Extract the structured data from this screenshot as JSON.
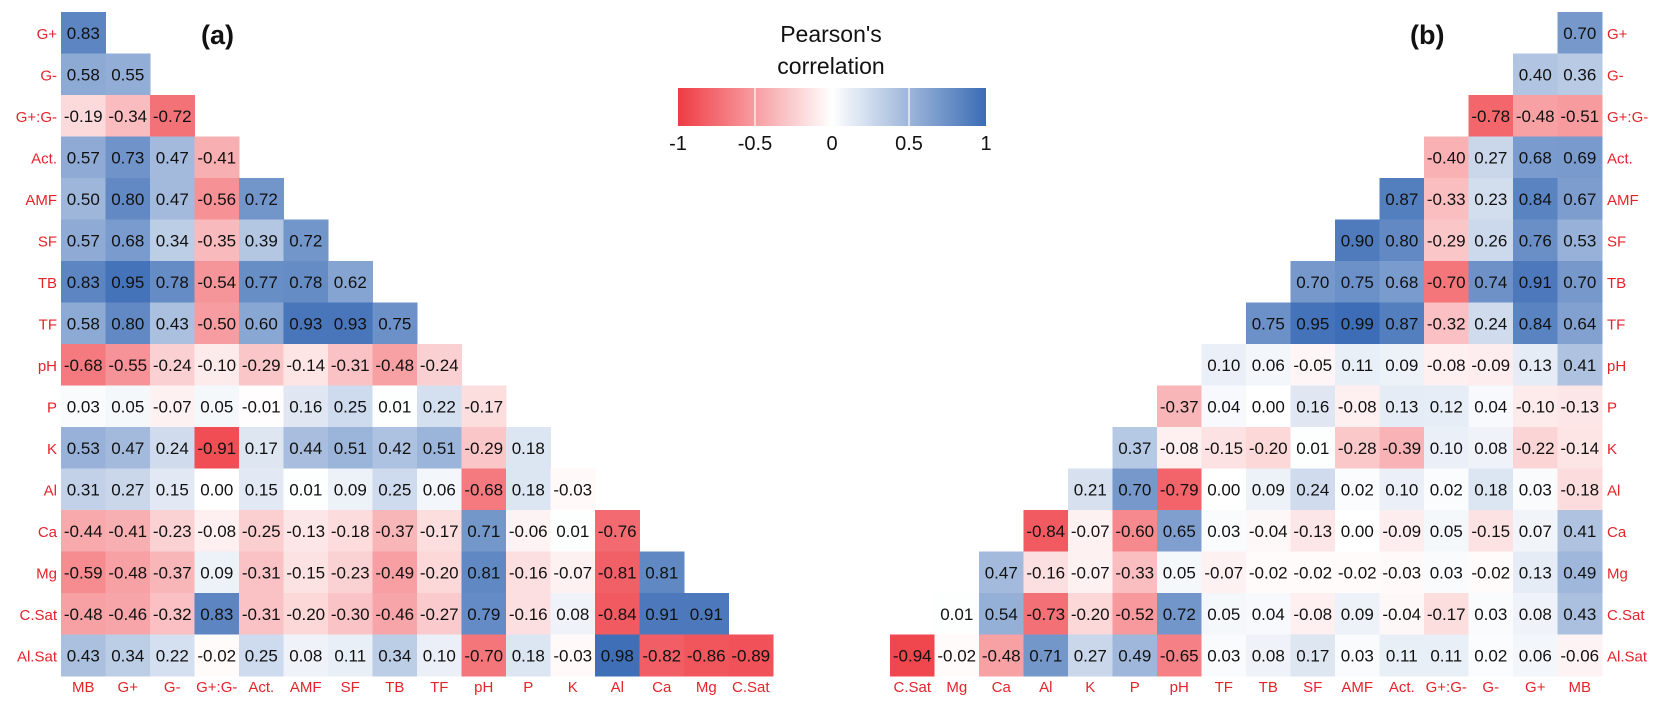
{
  "chart_data": [
    {
      "type": "heatmap",
      "title": "(a)",
      "x": [
        "MB",
        "G+",
        "G-",
        "G+:G-",
        "Act.",
        "AMF",
        "SF",
        "TB",
        "TF",
        "pH",
        "P",
        "K",
        "Al",
        "Ca",
        "Mg",
        "C.Sat"
      ],
      "y": [
        "G+",
        "G-",
        "G+:G-",
        "Act.",
        "AMF",
        "SF",
        "TB",
        "TF",
        "pH",
        "P",
        "K",
        "Al",
        "Ca",
        "Mg",
        "C.Sat",
        "Al.Sat"
      ],
      "values": [
        [
          0.83
        ],
        [
          0.58,
          0.55
        ],
        [
          -0.19,
          -0.34,
          -0.72
        ],
        [
          0.57,
          0.73,
          0.47,
          -0.41
        ],
        [
          0.5,
          0.8,
          0.47,
          -0.56,
          0.72
        ],
        [
          0.57,
          0.68,
          0.34,
          -0.35,
          0.39,
          0.72
        ],
        [
          0.83,
          0.95,
          0.78,
          -0.54,
          0.77,
          0.78,
          0.62
        ],
        [
          0.58,
          0.8,
          0.43,
          -0.5,
          0.6,
          0.93,
          0.93,
          0.75
        ],
        [
          -0.68,
          -0.55,
          -0.24,
          -0.1,
          -0.29,
          -0.14,
          -0.31,
          -0.48,
          -0.24
        ],
        [
          0.03,
          0.05,
          -0.07,
          0.05,
          -0.01,
          0.16,
          0.25,
          0.01,
          0.22,
          -0.17
        ],
        [
          0.53,
          0.47,
          0.24,
          -0.91,
          0.17,
          0.44,
          0.51,
          0.42,
          0.51,
          -0.29,
          0.18
        ],
        [
          0.31,
          0.27,
          0.15,
          0.0,
          0.15,
          0.01,
          0.09,
          0.25,
          0.06,
          -0.68,
          0.18,
          -0.03
        ],
        [
          -0.44,
          -0.41,
          -0.23,
          -0.08,
          -0.25,
          -0.13,
          -0.18,
          -0.37,
          -0.17,
          0.71,
          -0.06,
          0.01,
          -0.76
        ],
        [
          -0.59,
          -0.48,
          -0.37,
          0.09,
          -0.31,
          -0.15,
          -0.23,
          -0.49,
          -0.2,
          0.81,
          -0.16,
          -0.07,
          -0.81,
          0.81
        ],
        [
          -0.48,
          -0.46,
          -0.32,
          0.83,
          -0.31,
          -0.2,
          -0.3,
          -0.46,
          -0.27,
          0.79,
          -0.16,
          0.08,
          -0.84,
          0.91,
          0.91
        ],
        [
          0.43,
          0.34,
          0.22,
          -0.02,
          0.25,
          0.08,
          0.11,
          0.34,
          0.1,
          -0.7,
          0.18,
          -0.03,
          0.98,
          -0.82,
          -0.86,
          -0.89
        ]
      ]
    },
    {
      "type": "heatmap",
      "title": "(b)",
      "x": [
        "C.Sat",
        "Mg",
        "Ca",
        "Al",
        "K",
        "P",
        "pH",
        "TF",
        "TB",
        "SF",
        "AMF",
        "Act.",
        "G+:G-",
        "G-",
        "G+",
        "MB"
      ],
      "y": [
        "G+",
        "G-",
        "G+:G-",
        "Act.",
        "AMF",
        "SF",
        "TB",
        "TF",
        "pH",
        "P",
        "K",
        "Al",
        "Ca",
        "Mg",
        "C.Sat",
        "Al.Sat"
      ],
      "values": [
        [
          0.7
        ],
        [
          0.4,
          0.36
        ],
        [
          -0.78,
          -0.48,
          -0.51
        ],
        [
          -0.4,
          0.27,
          0.68,
          0.69
        ],
        [
          0.87,
          -0.33,
          0.23,
          0.84,
          0.67
        ],
        [
          0.9,
          0.8,
          -0.29,
          0.26,
          0.76,
          0.53
        ],
        [
          0.7,
          0.75,
          0.68,
          -0.7,
          0.74,
          0.91,
          0.7
        ],
        [
          0.75,
          0.95,
          0.99,
          0.87,
          -0.32,
          0.24,
          0.84,
          0.64
        ],
        [
          0.1,
          0.06,
          -0.05,
          0.11,
          0.09,
          -0.08,
          -0.09,
          0.13,
          0.41
        ],
        [
          -0.37,
          0.04,
          0.0,
          0.16,
          -0.08,
          0.13,
          0.12,
          0.04,
          -0.1,
          -0.13
        ],
        [
          0.37,
          -0.08,
          -0.15,
          -0.2,
          0.01,
          -0.28,
          -0.39,
          0.1,
          0.08,
          -0.22,
          -0.14
        ],
        [
          0.21,
          0.7,
          -0.79,
          0.0,
          0.09,
          0.24,
          0.02,
          0.1,
          0.02,
          0.18,
          0.03,
          -0.18
        ],
        [
          -0.84,
          -0.07,
          -0.6,
          0.65,
          0.03,
          -0.04,
          -0.13,
          0.0,
          -0.09,
          0.05,
          -0.15,
          0.07,
          0.41
        ],
        [
          0.47,
          -0.16,
          -0.07,
          -0.33,
          0.05,
          -0.07,
          -0.02,
          -0.02,
          -0.02,
          -0.03,
          0.03,
          -0.02,
          0.13,
          0.49
        ],
        [
          0.01,
          0.54,
          -0.73,
          -0.2,
          -0.52,
          0.72,
          0.05,
          0.04,
          -0.08,
          0.09,
          -0.04,
          -0.17,
          0.03,
          0.08,
          0.43
        ],
        [
          -0.94,
          -0.02,
          -0.48,
          0.71,
          0.27,
          0.49,
          -0.65,
          0.03,
          0.08,
          0.17,
          0.03,
          0.11,
          0.11,
          0.02,
          0.06,
          -0.06
        ]
      ]
    }
  ],
  "legend": {
    "title_line1": "Pearson's",
    "title_line2": "correlation",
    "ticks": [
      "-1",
      "-0.5",
      "0",
      "0.5",
      "1"
    ],
    "tick_values": [
      -1,
      -0.5,
      0,
      0.5,
      1
    ]
  },
  "colors": {
    "negative": "#ef3b43",
    "zero": "#ffffff",
    "positive": "#3b6cb5",
    "axis_label": "#e3242b",
    "text": "#111111"
  }
}
